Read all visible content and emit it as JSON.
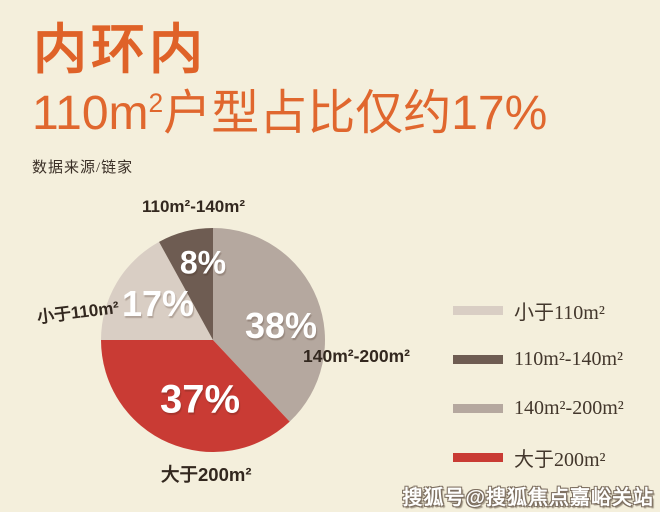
{
  "header": {
    "title_line1": "内环内",
    "title_line2": {
      "pre": "110m",
      "sup": "2",
      "post": "户型占比仅约17%"
    },
    "source": "数据来源/链家"
  },
  "colors": {
    "background": "#f4efdc",
    "accent_orange": "#df6228",
    "label_text": "#33281f"
  },
  "chart_data": {
    "type": "pie",
    "title": "内环内110m²户型占比仅约17%",
    "source": "数据来源/链家",
    "start_angle_deg": 0,
    "direction": "clockwise",
    "slices": [
      {
        "label": "140m²-200m²",
        "value": 38,
        "pct_label": "38%",
        "color": "#b5a89f"
      },
      {
        "label": "大于200m²",
        "value": 37,
        "pct_label": "37%",
        "color": "#c93b34"
      },
      {
        "label": "小于110m²",
        "value": 17,
        "pct_label": "17%",
        "color": "#d9cec4"
      },
      {
        "label": "110m²-140m²",
        "value": 8,
        "pct_label": "8%",
        "color": "#6e5c52"
      }
    ],
    "legend_position": "right",
    "legend": [
      {
        "label": "小于110m²",
        "color": "#d9cec4"
      },
      {
        "label": "110m²-140m²",
        "color": "#6e5c52"
      },
      {
        "label": "140m²-200m²",
        "color": "#b5a89f"
      },
      {
        "label": "大于200m²",
        "color": "#c93b34"
      }
    ]
  },
  "watermark": "搜狐号@搜狐焦点嘉峪关站"
}
